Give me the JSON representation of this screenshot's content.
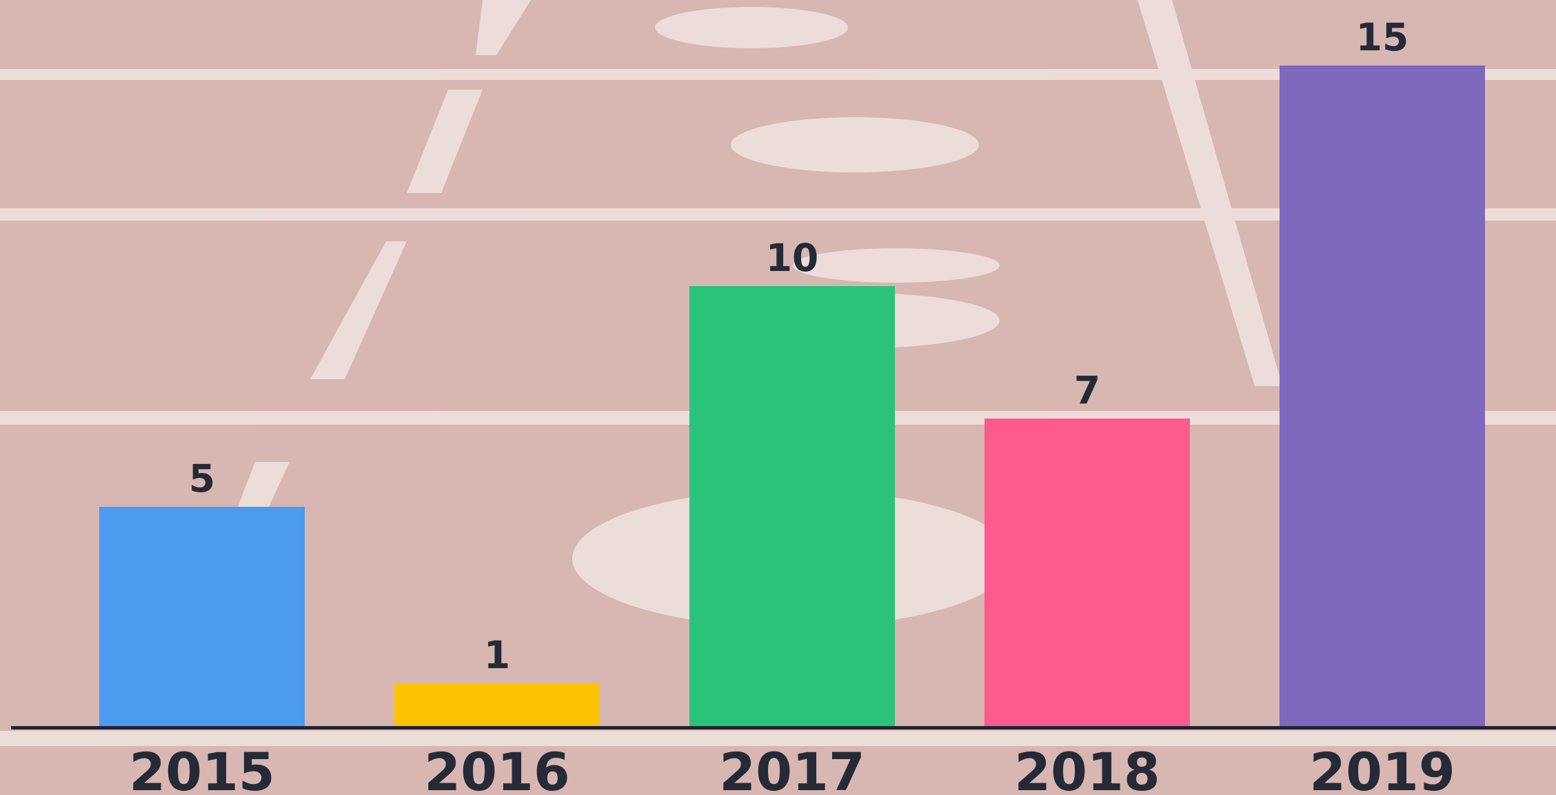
{
  "chart_data": {
    "type": "bar",
    "categories": [
      "2015",
      "2016",
      "2017",
      "2018",
      "2019"
    ],
    "values": [
      5,
      1,
      10,
      7,
      15
    ],
    "colors": [
      "#4d9bee",
      "#fdc300",
      "#29c37c",
      "#fd5a8e",
      "#7e69be"
    ],
    "data_labels": true
  }
}
